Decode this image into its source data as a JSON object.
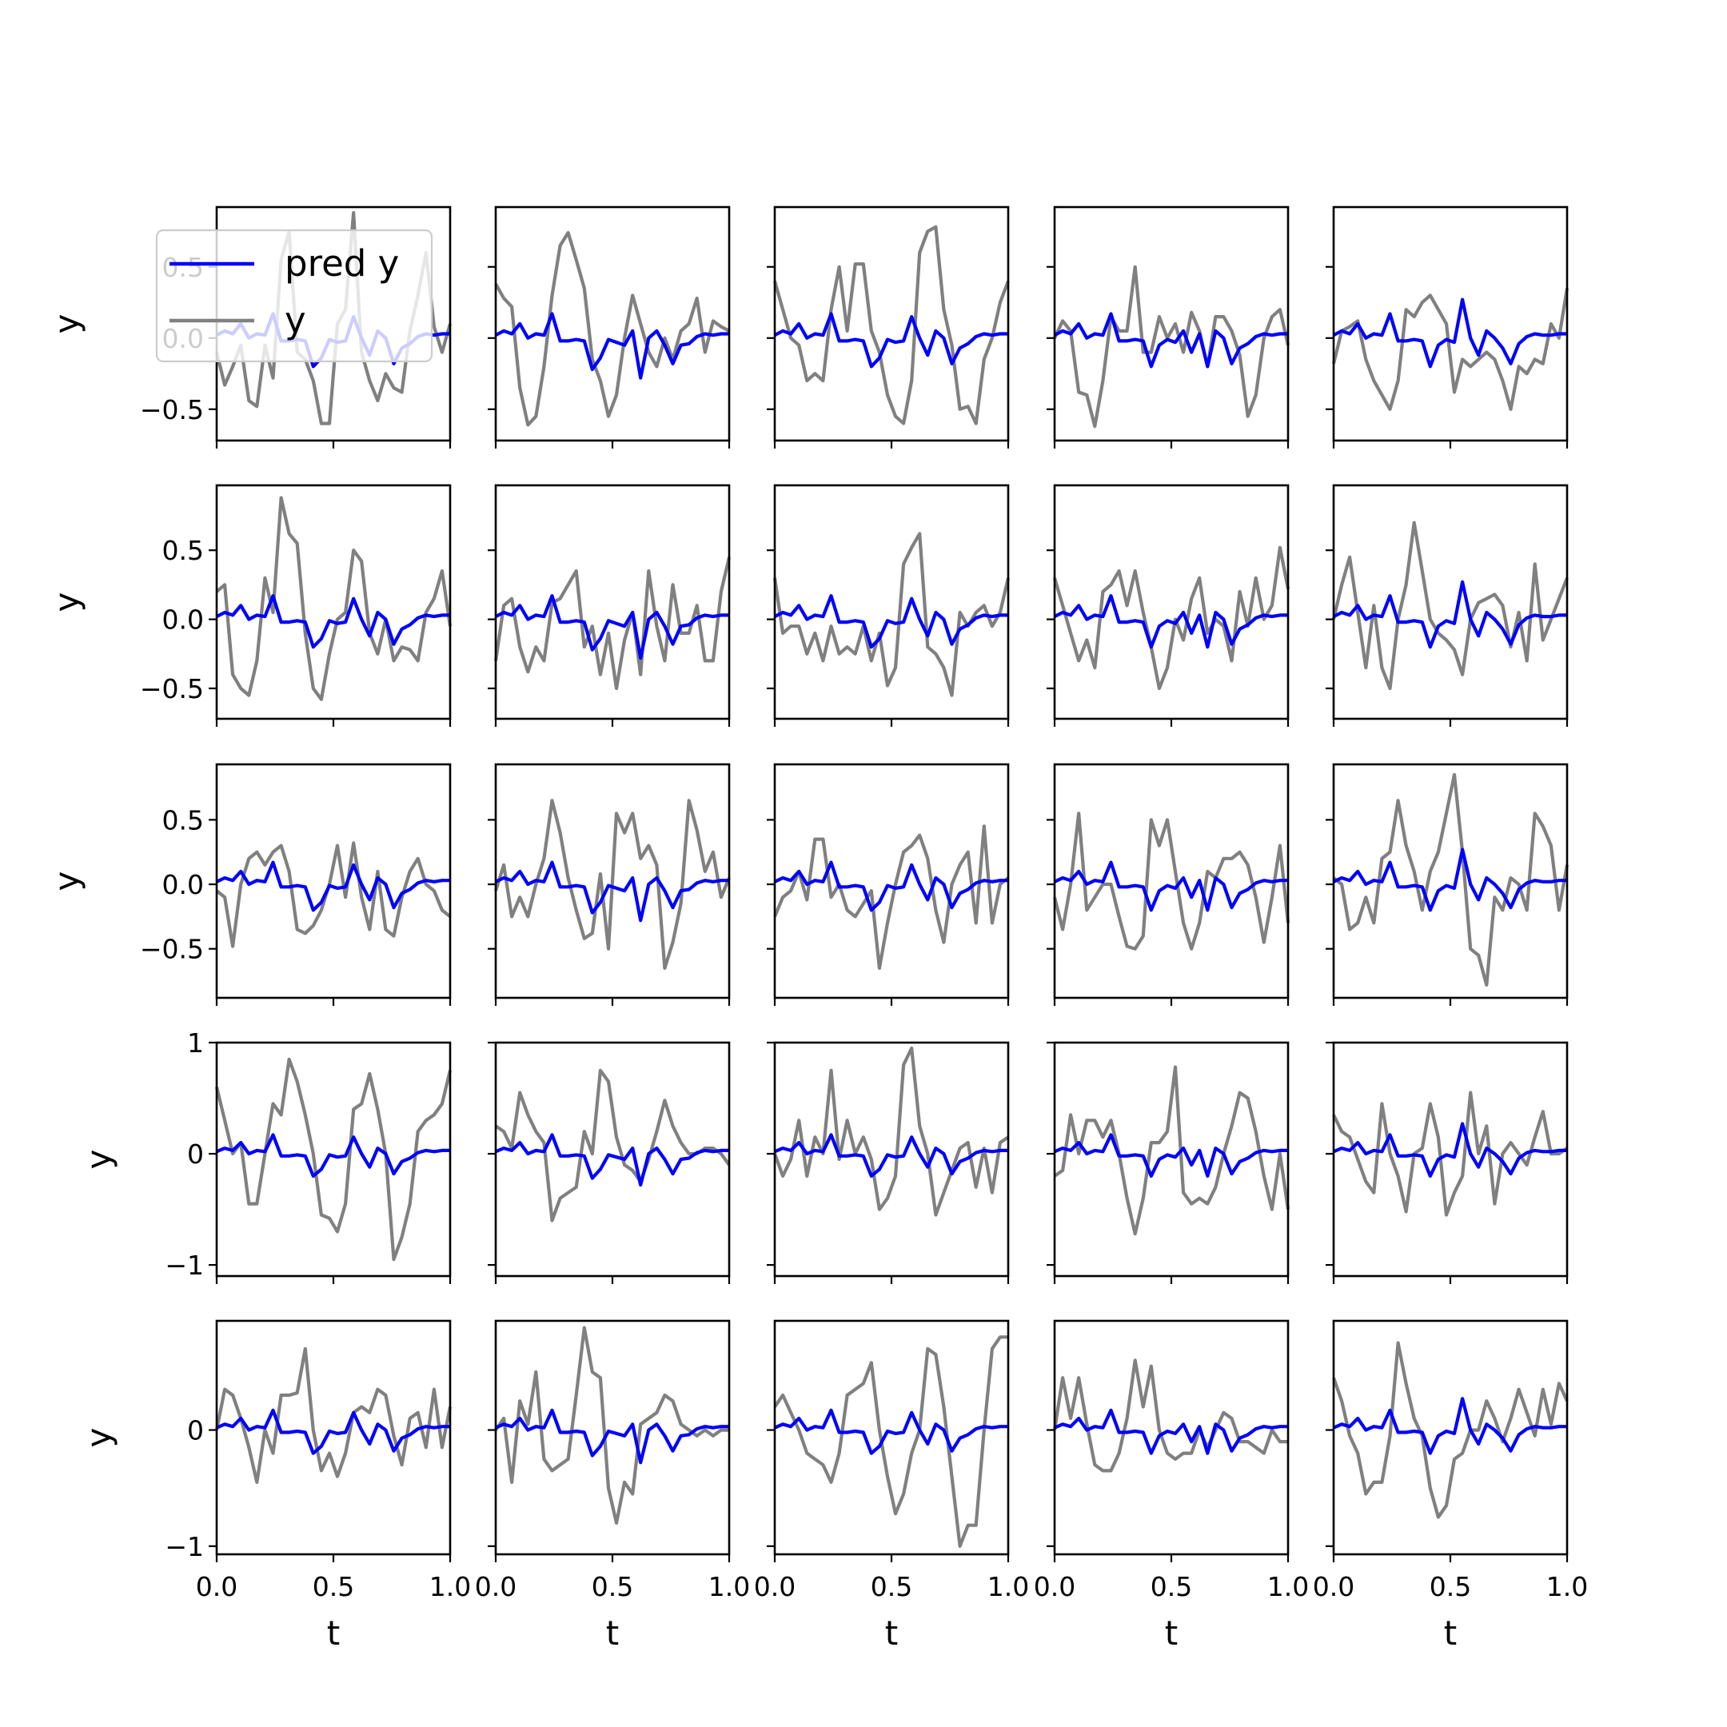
{
  "chart_data": {
    "type": "line",
    "layout": "5x5 grid of subplots, shared x axis (t), shared y axis per row",
    "xlabel": "t",
    "ylabel": "y",
    "xlim": [
      0.0,
      1.0
    ],
    "xticks": [
      0.0,
      0.5,
      1.0
    ],
    "xtick_labels": [
      "0.0",
      "0.5",
      "1.0"
    ],
    "legend": {
      "location": "top-left of first subplot",
      "entries": [
        {
          "label": "pred y",
          "color": "#0000ff"
        },
        {
          "label": "y",
          "color": "#808080"
        }
      ]
    },
    "colors": {
      "pred": "#0000ff",
      "true": "#808080"
    },
    "rows": [
      {
        "ylim": [
          -0.72,
          0.92
        ],
        "yticks": [
          -0.5,
          0.0,
          0.5
        ],
        "ytick_labels": [
          "−0.5",
          "0.0",
          "0.5"
        ]
      },
      {
        "ylim": [
          -0.72,
          0.97
        ],
        "yticks": [
          -0.5,
          0.0,
          0.5
        ],
        "ytick_labels": [
          "−0.5",
          "0.0",
          "0.5"
        ]
      },
      {
        "ylim": [
          -0.88,
          0.93
        ],
        "yticks": [
          -0.5,
          0.0,
          0.5
        ],
        "ytick_labels": [
          "−0.5",
          "0.0",
          "0.5"
        ]
      },
      {
        "ylim": [
          -1.1,
          1.0
        ],
        "yticks": [
          -1,
          0,
          1
        ],
        "ytick_labels": [
          "−1",
          "0",
          "1"
        ]
      },
      {
        "ylim": [
          -1.07,
          0.94
        ],
        "yticks": [
          -1,
          0
        ],
        "ytick_labels": [
          "−1",
          "0"
        ]
      }
    ],
    "x": [
      0.0,
      0.0345,
      0.069,
      0.1034,
      0.1379,
      0.1724,
      0.2069,
      0.2414,
      0.2759,
      0.3103,
      0.3448,
      0.3793,
      0.4138,
      0.4483,
      0.4828,
      0.5172,
      0.5517,
      0.5862,
      0.6207,
      0.6552,
      0.6897,
      0.7241,
      0.7586,
      0.7931,
      0.8276,
      0.8621,
      0.8966,
      0.931,
      0.9655,
      1.0
    ],
    "pred_shapes": [
      [
        0.02,
        0.05,
        0.03,
        0.1,
        0.0,
        0.03,
        0.02,
        0.17,
        -0.02,
        -0.02,
        -0.01,
        -0.02,
        -0.2,
        -0.14,
        -0.01,
        -0.03,
        -0.02,
        0.15,
        0.0,
        -0.12,
        0.05,
        0.0,
        -0.18,
        -0.07,
        -0.04,
        0.01,
        0.03,
        0.02,
        0.03,
        0.03
      ],
      [
        0.02,
        0.05,
        0.03,
        0.1,
        0.0,
        0.03,
        0.02,
        0.17,
        -0.02,
        -0.02,
        -0.01,
        -0.02,
        -0.22,
        -0.14,
        -0.01,
        -0.03,
        -0.05,
        0.05,
        -0.28,
        0.0,
        0.05,
        -0.05,
        -0.18,
        -0.05,
        -0.04,
        0.01,
        0.03,
        0.02,
        0.03,
        0.03
      ],
      [
        0.02,
        0.05,
        0.03,
        0.1,
        0.0,
        0.03,
        0.02,
        0.17,
        -0.02,
        -0.02,
        -0.01,
        -0.02,
        -0.2,
        -0.14,
        -0.01,
        -0.03,
        -0.02,
        0.15,
        0.0,
        -0.12,
        0.05,
        0.0,
        -0.18,
        -0.07,
        -0.04,
        0.01,
        0.03,
        0.02,
        0.03,
        0.03
      ],
      [
        0.02,
        0.05,
        0.03,
        0.1,
        0.0,
        0.03,
        0.02,
        0.17,
        -0.02,
        -0.02,
        -0.01,
        -0.02,
        -0.2,
        -0.05,
        -0.01,
        -0.03,
        0.05,
        -0.1,
        0.03,
        -0.2,
        0.05,
        0.0,
        -0.18,
        -0.07,
        -0.04,
        0.01,
        0.03,
        0.02,
        0.03,
        0.03
      ],
      [
        0.02,
        0.05,
        0.03,
        0.1,
        0.0,
        0.03,
        0.02,
        0.17,
        -0.02,
        -0.02,
        -0.01,
        -0.02,
        -0.2,
        -0.05,
        -0.01,
        -0.03,
        0.27,
        0.0,
        -0.12,
        0.05,
        0.0,
        -0.07,
        -0.18,
        -0.04,
        0.01,
        0.03,
        0.02,
        0.02,
        0.03,
        0.03
      ]
    ],
    "true_series": [
      [
        [
          -0.1,
          -0.33,
          -0.2,
          -0.05,
          -0.44,
          -0.48,
          -0.05,
          -0.28,
          0.55,
          0.75,
          -0.1,
          -0.15,
          -0.3,
          -0.6,
          -0.6,
          0.1,
          0.2,
          0.88,
          -0.1,
          -0.3,
          -0.44,
          -0.25,
          -0.35,
          -0.38,
          0.05,
          0.3,
          0.6,
          0.08,
          -0.1,
          0.1
        ],
        [
          0.38,
          0.28,
          0.22,
          -0.35,
          -0.61,
          -0.55,
          -0.2,
          0.3,
          0.65,
          0.74,
          0.55,
          0.35,
          -0.15,
          -0.3,
          -0.55,
          -0.4,
          0.0,
          0.3,
          0.1,
          -0.1,
          -0.2,
          0.0,
          -0.15,
          0.05,
          0.1,
          0.28,
          -0.1,
          0.12,
          0.08,
          0.05
        ],
        [
          0.4,
          0.2,
          0.0,
          -0.05,
          -0.3,
          -0.25,
          -0.3,
          0.2,
          0.5,
          0.05,
          0.52,
          0.52,
          0.05,
          -0.1,
          -0.4,
          -0.55,
          -0.6,
          -0.3,
          0.6,
          0.75,
          0.78,
          0.2,
          -0.05,
          -0.5,
          -0.48,
          -0.6,
          -0.15,
          0.0,
          0.25,
          0.4
        ],
        [
          0.0,
          0.12,
          0.05,
          -0.38,
          -0.4,
          -0.62,
          -0.3,
          0.15,
          0.05,
          0.05,
          0.5,
          -0.1,
          -0.1,
          0.15,
          0.0,
          0.1,
          -0.1,
          0.18,
          0.05,
          -0.2,
          0.15,
          0.15,
          0.05,
          -0.12,
          -0.55,
          -0.4,
          0.0,
          0.15,
          0.2,
          -0.05
        ],
        [
          -0.18,
          0.05,
          0.08,
          0.12,
          -0.15,
          -0.3,
          -0.4,
          -0.5,
          -0.3,
          0.2,
          0.15,
          0.25,
          0.3,
          0.2,
          0.1,
          -0.38,
          -0.15,
          -0.2,
          -0.15,
          -0.1,
          -0.15,
          -0.3,
          -0.5,
          -0.2,
          -0.25,
          -0.15,
          -0.18,
          0.1,
          0.0,
          0.35
        ]
      ],
      [
        [
          0.2,
          0.25,
          -0.4,
          -0.5,
          -0.55,
          -0.3,
          0.3,
          0.05,
          0.88,
          0.62,
          0.55,
          -0.1,
          -0.5,
          -0.58,
          -0.25,
          0.0,
          0.05,
          0.5,
          0.42,
          -0.1,
          -0.25,
          0.0,
          -0.3,
          -0.2,
          -0.22,
          -0.3,
          0.05,
          0.15,
          0.35,
          -0.05
        ],
        [
          -0.3,
          0.1,
          0.15,
          -0.2,
          -0.38,
          -0.2,
          -0.3,
          0.12,
          0.15,
          0.25,
          0.35,
          -0.2,
          -0.05,
          -0.4,
          -0.1,
          -0.5,
          -0.15,
          0.05,
          -0.4,
          0.35,
          -0.05,
          -0.3,
          0.25,
          -0.1,
          -0.1,
          0.1,
          -0.3,
          -0.3,
          0.2,
          0.45
        ],
        [
          0.3,
          -0.1,
          -0.05,
          -0.05,
          -0.25,
          -0.1,
          -0.3,
          -0.05,
          -0.25,
          -0.2,
          -0.25,
          -0.05,
          -0.3,
          -0.1,
          -0.48,
          -0.35,
          0.4,
          0.52,
          0.62,
          -0.2,
          -0.25,
          -0.35,
          -0.55,
          0.05,
          -0.05,
          0.05,
          0.1,
          -0.05,
          0.05,
          0.3
        ],
        [
          0.3,
          0.1,
          -0.1,
          -0.3,
          -0.15,
          -0.35,
          0.2,
          0.25,
          0.35,
          0.1,
          0.35,
          0.05,
          -0.2,
          -0.5,
          -0.35,
          0.0,
          -0.15,
          0.15,
          0.3,
          -0.1,
          0.0,
          -0.05,
          -0.3,
          0.2,
          -0.05,
          0.3,
          0.0,
          0.1,
          0.52,
          0.22
        ],
        [
          0.0,
          0.25,
          0.45,
          0.05,
          -0.35,
          0.1,
          -0.35,
          -0.5,
          0.0,
          0.25,
          0.7,
          0.35,
          0.0,
          -0.1,
          -0.15,
          -0.22,
          -0.4,
          0.0,
          0.12,
          0.15,
          0.18,
          0.1,
          -0.2,
          0.05,
          -0.3,
          0.4,
          -0.15,
          0.0,
          0.15,
          0.3
        ]
      ],
      [
        [
          -0.05,
          -0.1,
          -0.48,
          0.0,
          0.2,
          0.25,
          0.15,
          0.25,
          0.3,
          0.1,
          -0.35,
          -0.38,
          -0.32,
          -0.2,
          0.0,
          0.3,
          -0.1,
          0.32,
          -0.1,
          -0.35,
          0.1,
          -0.35,
          -0.4,
          -0.1,
          0.1,
          0.2,
          0.0,
          -0.05,
          -0.2,
          -0.25
        ],
        [
          -0.05,
          0.15,
          -0.25,
          -0.1,
          -0.25,
          0.0,
          0.2,
          0.65,
          0.4,
          0.05,
          -0.2,
          -0.42,
          -0.38,
          0.08,
          -0.5,
          0.55,
          0.4,
          0.55,
          0.2,
          0.3,
          0.15,
          -0.65,
          -0.45,
          -0.15,
          0.65,
          0.42,
          0.1,
          0.25,
          -0.1,
          0.05
        ],
        [
          -0.25,
          -0.1,
          -0.05,
          0.1,
          -0.12,
          0.35,
          0.35,
          -0.1,
          0.0,
          -0.2,
          -0.25,
          -0.15,
          -0.05,
          -0.65,
          -0.3,
          0.0,
          0.25,
          0.3,
          0.38,
          0.2,
          -0.2,
          -0.45,
          0.0,
          0.15,
          0.25,
          -0.3,
          0.45,
          -0.3,
          0.0,
          0.05
        ],
        [
          -0.1,
          -0.35,
          0.0,
          0.55,
          -0.2,
          -0.1,
          0.0,
          0.0,
          -0.25,
          -0.48,
          -0.5,
          -0.4,
          0.5,
          0.3,
          0.5,
          0.1,
          -0.3,
          -0.5,
          -0.3,
          0.1,
          0.05,
          0.2,
          0.2,
          0.25,
          0.15,
          -0.1,
          -0.45,
          -0.1,
          0.3,
          -0.3
        ],
        [
          0.05,
          0.0,
          -0.35,
          -0.3,
          -0.1,
          -0.3,
          0.2,
          0.25,
          0.65,
          0.3,
          0.1,
          -0.2,
          0.1,
          0.25,
          0.55,
          0.85,
          0.25,
          -0.5,
          -0.55,
          -0.78,
          -0.1,
          -0.2,
          0.05,
          0.0,
          -0.2,
          0.55,
          0.45,
          0.3,
          -0.2,
          0.15
        ]
      ],
      [
        [
          0.6,
          0.3,
          0.0,
          0.1,
          -0.45,
          -0.45,
          0.0,
          0.45,
          0.35,
          0.85,
          0.65,
          0.35,
          0.0,
          -0.55,
          -0.58,
          -0.7,
          -0.45,
          0.4,
          0.45,
          0.72,
          0.4,
          0.0,
          -0.95,
          -0.75,
          -0.45,
          0.2,
          0.3,
          0.35,
          0.45,
          0.75
        ],
        [
          0.25,
          0.2,
          0.05,
          0.55,
          0.35,
          0.2,
          0.1,
          -0.6,
          -0.4,
          -0.35,
          -0.3,
          0.2,
          0.0,
          0.75,
          0.65,
          0.15,
          -0.1,
          -0.15,
          -0.25,
          -0.05,
          0.2,
          0.48,
          0.25,
          0.1,
          0.0,
          0.0,
          0.05,
          0.05,
          0.0,
          -0.1
        ],
        [
          0.0,
          -0.2,
          -0.05,
          0.3,
          -0.2,
          0.15,
          0.0,
          0.75,
          -0.05,
          0.3,
          0.0,
          0.15,
          -0.05,
          -0.5,
          -0.4,
          -0.2,
          0.8,
          0.95,
          0.25,
          0.0,
          -0.55,
          -0.35,
          -0.15,
          0.05,
          0.1,
          -0.3,
          0.05,
          -0.35,
          0.1,
          0.15
        ],
        [
          -0.2,
          -0.15,
          0.35,
          0.0,
          0.3,
          0.3,
          0.15,
          0.3,
          0.0,
          -0.4,
          -0.72,
          -0.4,
          0.1,
          0.1,
          0.2,
          0.78,
          -0.35,
          -0.45,
          -0.4,
          -0.45,
          -0.3,
          0.0,
          0.25,
          0.55,
          0.5,
          0.2,
          -0.2,
          -0.5,
          0.0,
          -0.5
        ],
        [
          0.35,
          0.2,
          0.15,
          -0.05,
          -0.25,
          -0.35,
          0.45,
          0.0,
          -0.2,
          -0.52,
          0.0,
          0.05,
          0.45,
          0.15,
          -0.55,
          -0.35,
          -0.2,
          0.55,
          0.0,
          0.25,
          -0.45,
          0.0,
          0.1,
          0.0,
          -0.1,
          0.15,
          0.38,
          0.0,
          0.0,
          0.05
        ]
      ],
      [
        [
          0.0,
          0.35,
          0.3,
          0.1,
          -0.15,
          -0.45,
          0.0,
          -0.2,
          0.3,
          0.3,
          0.32,
          0.7,
          0.0,
          -0.35,
          -0.2,
          -0.4,
          -0.2,
          0.15,
          0.2,
          0.15,
          0.35,
          0.3,
          -0.05,
          -0.3,
          0.1,
          0.15,
          -0.15,
          0.35,
          -0.15,
          0.2
        ],
        [
          0.0,
          0.1,
          -0.45,
          0.25,
          0.05,
          0.5,
          -0.25,
          -0.35,
          -0.3,
          -0.25,
          0.3,
          0.88,
          0.5,
          0.45,
          -0.5,
          -0.8,
          -0.45,
          -0.55,
          0.05,
          0.1,
          0.15,
          0.3,
          0.25,
          0.05,
          0.0,
          -0.05,
          0.0,
          -0.05,
          0.0,
          0.0
        ],
        [
          0.2,
          0.3,
          0.15,
          0.0,
          -0.2,
          -0.25,
          -0.3,
          -0.45,
          -0.2,
          0.3,
          0.35,
          0.4,
          0.58,
          0.0,
          -0.4,
          -0.72,
          -0.55,
          -0.2,
          0.0,
          0.7,
          0.65,
          0.2,
          -0.4,
          -1.0,
          -0.82,
          -0.82,
          0.0,
          0.7,
          0.8,
          0.8
        ],
        [
          0.0,
          0.45,
          0.1,
          0.45,
          0.05,
          -0.3,
          -0.35,
          -0.35,
          -0.2,
          0.1,
          0.6,
          0.2,
          0.55,
          0.0,
          -0.2,
          -0.25,
          -0.2,
          -0.2,
          0.0,
          -0.15,
          0.0,
          0.15,
          0.1,
          -0.1,
          -0.1,
          -0.15,
          -0.2,
          0.0,
          -0.1,
          -0.1
        ],
        [
          0.45,
          0.25,
          -0.05,
          -0.2,
          -0.55,
          -0.45,
          -0.45,
          -0.05,
          0.75,
          0.4,
          0.1,
          -0.05,
          -0.5,
          -0.75,
          -0.65,
          -0.25,
          -0.2,
          0.0,
          0.0,
          0.25,
          0.1,
          -0.1,
          0.1,
          0.35,
          0.15,
          -0.05,
          0.35,
          0.05,
          0.4,
          0.25
        ]
      ]
    ]
  }
}
